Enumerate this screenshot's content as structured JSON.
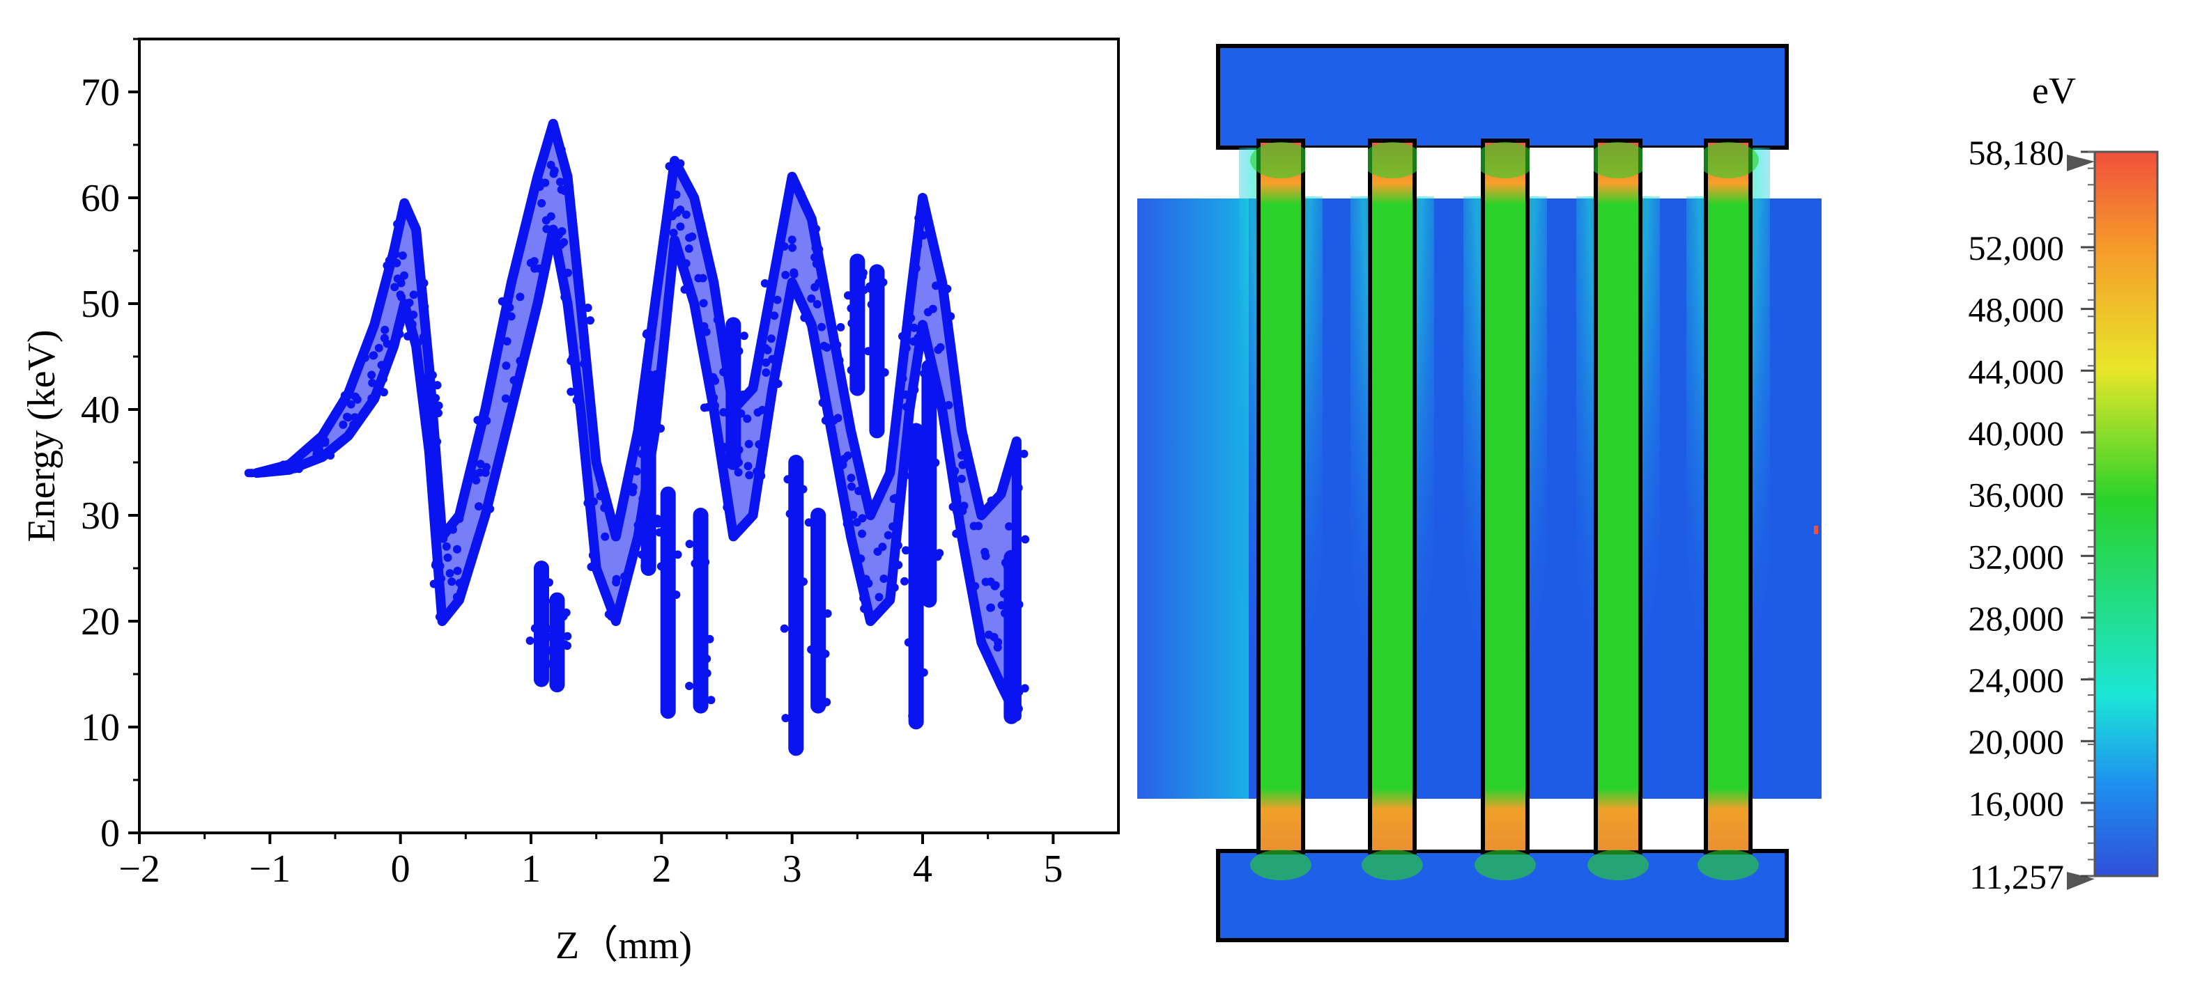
{
  "chart_data": [
    {
      "type": "scatter",
      "xlabel": "Z（mm)",
      "ylabel": "Energy (keV)",
      "xlim": [
        -2,
        5.5
      ],
      "ylim": [
        0,
        75
      ],
      "xticks": [
        "−2",
        "−1",
        "0",
        "1",
        "2",
        "3",
        "4",
        "5"
      ],
      "yticks": [
        "0",
        "10",
        "20",
        "30",
        "40",
        "50",
        "60",
        "70"
      ],
      "grid": false,
      "point_color": "#0a14f0",
      "trajectory": [
        {
          "x": -1.1,
          "lo": 34,
          "hi": 34
        },
        {
          "x": -0.85,
          "lo": 34.3,
          "hi": 34.8
        },
        {
          "x": -0.6,
          "lo": 35.5,
          "hi": 37.5
        },
        {
          "x": -0.4,
          "lo": 37.5,
          "hi": 41.5
        },
        {
          "x": -0.2,
          "lo": 41.0,
          "hi": 48.0
        },
        {
          "x": -0.05,
          "lo": 46.0,
          "hi": 55.0
        },
        {
          "x": 0.03,
          "lo": 50.0,
          "hi": 59.5
        },
        {
          "x": 0.12,
          "lo": 46.0,
          "hi": 57.0
        },
        {
          "x": 0.22,
          "lo": 36.0,
          "hi": 44.0
        },
        {
          "x": 0.32,
          "lo": 20.0,
          "hi": 28.0
        },
        {
          "x": 0.45,
          "lo": 22.0,
          "hi": 30.0
        },
        {
          "x": 0.65,
          "lo": 30.0,
          "hi": 40.0
        },
        {
          "x": 0.85,
          "lo": 40.0,
          "hi": 52.0
        },
        {
          "x": 1.05,
          "lo": 50.0,
          "hi": 62.0
        },
        {
          "x": 1.17,
          "lo": 57.0,
          "hi": 67.0
        },
        {
          "x": 1.28,
          "lo": 50.0,
          "hi": 62.0
        },
        {
          "x": 1.38,
          "lo": 40.0,
          "hi": 50.0
        },
        {
          "x": 1.5,
          "lo": 25.0,
          "hi": 35.0
        },
        {
          "x": 1.65,
          "lo": 20.0,
          "hi": 28.0
        },
        {
          "x": 1.82,
          "lo": 28.0,
          "hi": 38.0
        },
        {
          "x": 1.95,
          "lo": 38.0,
          "hi": 50.0
        },
        {
          "x": 2.1,
          "lo": 56.0,
          "hi": 63.5
        },
        {
          "x": 2.25,
          "lo": 50.0,
          "hi": 60.0
        },
        {
          "x": 2.4,
          "lo": 40.0,
          "hi": 52.0
        },
        {
          "x": 2.55,
          "lo": 28.0,
          "hi": 40.0
        },
        {
          "x": 2.7,
          "lo": 30.0,
          "hi": 42.0
        },
        {
          "x": 2.85,
          "lo": 42.0,
          "hi": 52.0
        },
        {
          "x": 3.0,
          "lo": 52.0,
          "hi": 62.0
        },
        {
          "x": 3.15,
          "lo": 48.0,
          "hi": 58.0
        },
        {
          "x": 3.3,
          "lo": 38.0,
          "hi": 48.0
        },
        {
          "x": 3.45,
          "lo": 28.0,
          "hi": 38.0
        },
        {
          "x": 3.6,
          "lo": 20.0,
          "hi": 30.0
        },
        {
          "x": 3.75,
          "lo": 22.0,
          "hi": 34.0
        },
        {
          "x": 3.9,
          "lo": 40.0,
          "hi": 50.0
        },
        {
          "x": 4.0,
          "lo": 48.0,
          "hi": 60.0
        },
        {
          "x": 4.15,
          "lo": 40.0,
          "hi": 52.0
        },
        {
          "x": 4.3,
          "lo": 28.0,
          "hi": 38.0
        },
        {
          "x": 4.45,
          "lo": 18.0,
          "hi": 30.0
        },
        {
          "x": 4.6,
          "lo": 14.0,
          "hi": 32.0
        },
        {
          "x": 4.72,
          "lo": 11.0,
          "hi": 37.0
        }
      ],
      "extra_loops": [
        {
          "x": 1.08,
          "lo": 14.5,
          "hi": 25.0
        },
        {
          "x": 1.2,
          "lo": 14.0,
          "hi": 22.0
        },
        {
          "x": 1.9,
          "lo": 25.0,
          "hi": 43.0
        },
        {
          "x": 2.05,
          "lo": 11.5,
          "hi": 32.0
        },
        {
          "x": 2.3,
          "lo": 12.0,
          "hi": 30.0
        },
        {
          "x": 2.55,
          "lo": 35.0,
          "hi": 48.0
        },
        {
          "x": 3.03,
          "lo": 8.0,
          "hi": 35.0
        },
        {
          "x": 3.2,
          "lo": 12.0,
          "hi": 30.0
        },
        {
          "x": 3.5,
          "lo": 42.0,
          "hi": 54.0
        },
        {
          "x": 3.65,
          "lo": 38.0,
          "hi": 53.0
        },
        {
          "x": 3.95,
          "lo": 10.5,
          "hi": 38.0
        },
        {
          "x": 4.05,
          "lo": 22.0,
          "hi": 44.0
        },
        {
          "x": 4.68,
          "lo": 11.0,
          "hi": 26.0
        }
      ]
    },
    {
      "type": "heatmap",
      "colorbar_unit": "eV",
      "colorbar_ticks": [
        "58,180",
        "52,000",
        "48,000",
        "44,000",
        "40,000",
        "36,000",
        "32,000",
        "28,000",
        "24,000",
        "20,000",
        "16,000",
        "11,257"
      ],
      "colorbar_values": [
        58180,
        52000,
        48000,
        44000,
        40000,
        36000,
        32000,
        28000,
        24000,
        20000,
        16000,
        11257
      ],
      "range": [
        11257,
        58180
      ],
      "colors": {
        "high": "#f0503c",
        "orange": "#f59a2a",
        "yellow": "#e8e62a",
        "green": "#2ad22a",
        "cyan": "#1ce6d6",
        "blue": "#1e6cf0",
        "low": "#2040c8"
      },
      "columns": 5
    }
  ]
}
